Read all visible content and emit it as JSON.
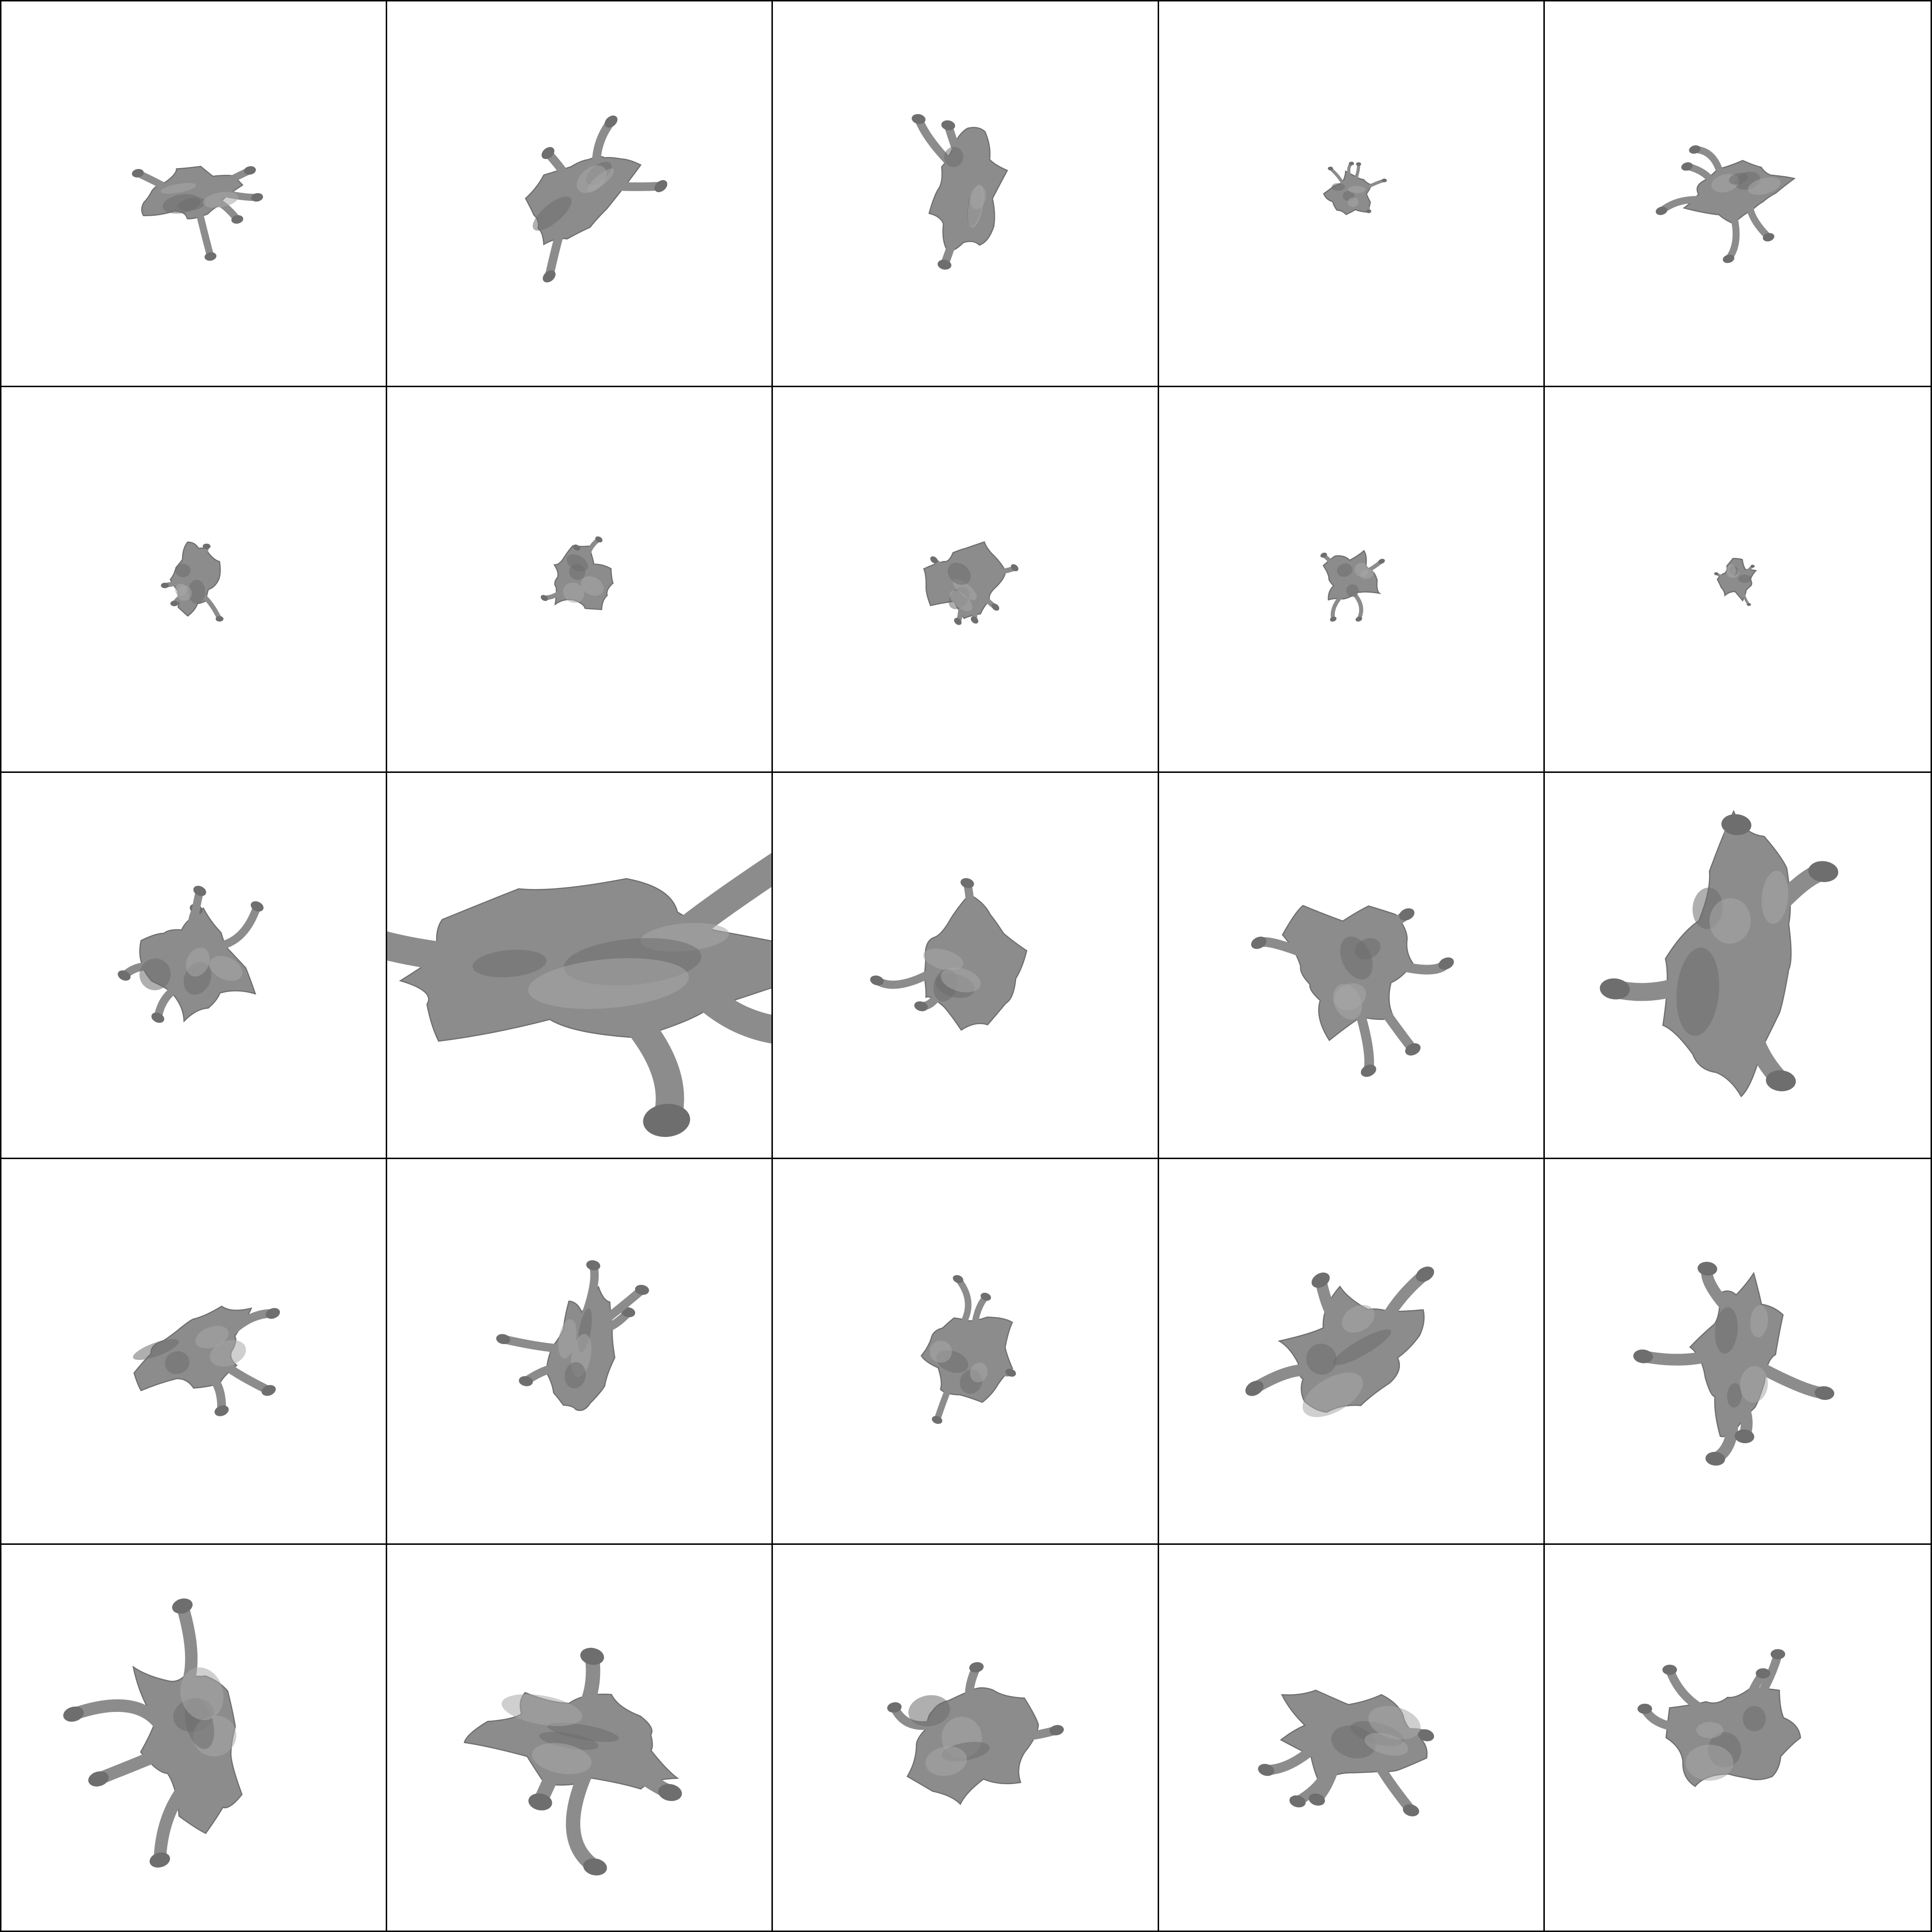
{
  "grid": {
    "rows": 5,
    "cols": 5
  },
  "colors": {
    "background": "#ffffff",
    "border": "#000000",
    "mesh": "#8c8c8c",
    "mesh_shade": "#6e6e6e",
    "mesh_highlight": "#a8a8a8"
  },
  "cells": [
    {
      "icon": "mesh-render-icon",
      "scale": 0.22,
      "aspect": 2.0,
      "rotation": -10
    },
    {
      "icon": "mesh-render-icon",
      "scale": 0.28,
      "aspect": 1.8,
      "rotation": -40
    },
    {
      "icon": "mesh-render-icon",
      "scale": 0.28,
      "aspect": 0.6,
      "rotation": 10
    },
    {
      "icon": "mesh-render-icon",
      "scale": 0.13,
      "aspect": 1.1,
      "rotation": 0
    },
    {
      "icon": "mesh-render-icon",
      "scale": 0.22,
      "aspect": 1.9,
      "rotation": -15
    },
    {
      "icon": "mesh-render-icon",
      "scale": 0.17,
      "aspect": 0.7,
      "rotation": 0
    },
    {
      "icon": "mesh-render-icon",
      "scale": 0.19,
      "aspect": 1.1,
      "rotation": 30
    },
    {
      "icon": "mesh-render-icon",
      "scale": 0.22,
      "aspect": 1.0,
      "rotation": 40
    },
    {
      "icon": "mesh-render-icon",
      "scale": 0.16,
      "aspect": 1.2,
      "rotation": -20
    },
    {
      "icon": "mesh-render-icon",
      "scale": 0.11,
      "aspect": 1.0,
      "rotation": 0
    },
    {
      "icon": "mesh-render-icon",
      "scale": 0.32,
      "aspect": 1.2,
      "rotation": 25
    },
    {
      "icon": "mesh-render-icon",
      "scale": 0.72,
      "aspect": 2.9,
      "rotation": -5
    },
    {
      "icon": "mesh-render-icon",
      "scale": 0.34,
      "aspect": 0.9,
      "rotation": 15
    },
    {
      "icon": "mesh-render-icon",
      "scale": 0.4,
      "aspect": 1.1,
      "rotation": -25
    },
    {
      "icon": "mesh-render-icon",
      "scale": 0.55,
      "aspect": 0.5,
      "rotation": 5
    },
    {
      "icon": "mesh-render-icon",
      "scale": 0.3,
      "aspect": 1.6,
      "rotation": -20
    },
    {
      "icon": "mesh-render-icon",
      "scale": 0.26,
      "aspect": 0.5,
      "rotation": 10
    },
    {
      "icon": "mesh-render-icon",
      "scale": 0.28,
      "aspect": 1.0,
      "rotation": 20
    },
    {
      "icon": "mesh-render-icon",
      "scale": 0.4,
      "aspect": 1.6,
      "rotation": -30
    },
    {
      "icon": "mesh-render-icon",
      "scale": 0.36,
      "aspect": 0.5,
      "rotation": 5
    },
    {
      "icon": "mesh-render-icon",
      "scale": 0.42,
      "aspect": 0.6,
      "rotation": -15
    },
    {
      "icon": "mesh-render-icon",
      "scale": 0.42,
      "aspect": 2.2,
      "rotation": 10
    },
    {
      "icon": "mesh-render-icon",
      "scale": 0.36,
      "aspect": 1.1,
      "rotation": -10
    },
    {
      "icon": "mesh-render-icon",
      "scale": 0.34,
      "aspect": 1.6,
      "rotation": 15
    },
    {
      "icon": "mesh-render-icon",
      "scale": 0.36,
      "aspect": 1.1,
      "rotation": 0
    }
  ]
}
